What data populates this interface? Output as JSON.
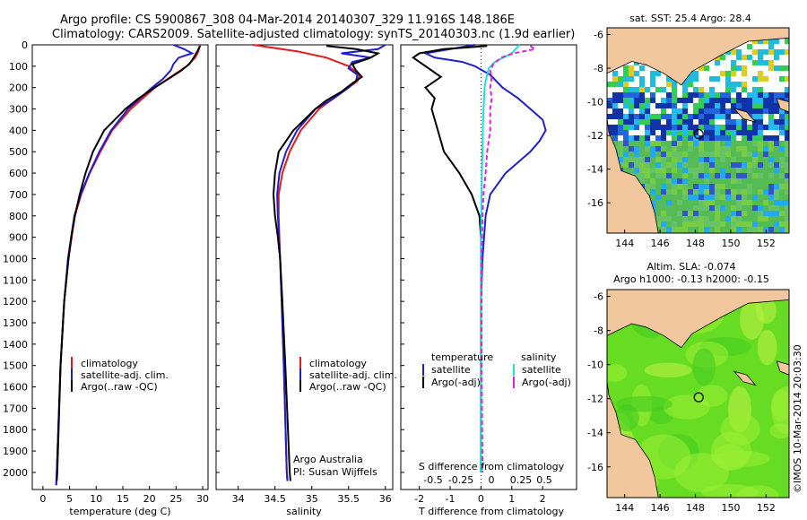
{
  "header": {
    "line1": "Argo profile: CS 5900867_308 04-Mar-2014 20140307_329 11.916S 148.186E",
    "line2": "Climatology: CARS2009. Satellite-adjusted climatology: synTS_20140303.nc (1.9d earlier)"
  },
  "colors": {
    "clim": "#e41a1c",
    "sat": "#1f1fcc",
    "argo": "#000000",
    "sal_sat": "#22dddd",
    "sal_argo": "#dd22dd",
    "land": "#f2c79e"
  },
  "chart_data": [
    {
      "type": "line",
      "id": "temperature",
      "xlabel": "temperature (deg C)",
      "xlim": [
        -2,
        31
      ],
      "xticks": [
        0,
        5,
        10,
        15,
        20,
        25,
        30
      ],
      "xtick_labels": [
        "0",
        "5",
        "10",
        "15",
        "20",
        "25",
        "30"
      ],
      "ylim": [
        2080,
        0
      ],
      "yticks": [
        0,
        100,
        200,
        300,
        400,
        500,
        600,
        700,
        800,
        900,
        1000,
        1100,
        1200,
        1300,
        1400,
        1500,
        1600,
        1700,
        1800,
        1900,
        2000
      ],
      "ytick_labels": [
        "0",
        "100",
        "200",
        "300",
        "400",
        "500",
        "600",
        "700",
        "800",
        "900",
        "1000",
        "1100",
        "1200",
        "1300",
        "1400",
        "1500",
        "1600",
        "1700",
        "1800",
        "1900",
        "2000"
      ],
      "legend": [
        "climatology",
        "satellite-adj. clim.",
        "Argo(..raw -QC)"
      ],
      "series": [
        {
          "name": "climatology",
          "color": "#e41a1c",
          "depth": [
            0,
            30,
            60,
            100,
            150,
            200,
            300,
            400,
            500,
            600,
            700,
            800,
            1000,
            1200,
            1500,
            2000,
            2060
          ],
          "values": [
            29.5,
            29.2,
            28.6,
            27.0,
            24.0,
            21.0,
            16.5,
            13.0,
            10.8,
            8.8,
            7.2,
            6.0,
            4.8,
            4.0,
            3.3,
            2.6,
            2.5
          ]
        },
        {
          "name": "satellite-adj. clim.",
          "color": "#1f1fcc",
          "depth": [
            0,
            20,
            40,
            60,
            90,
            120,
            160,
            200,
            300,
            400,
            500,
            600,
            700,
            800,
            1000,
            1200,
            1500,
            2000,
            2060
          ],
          "values": [
            24.5,
            26.5,
            28.0,
            25.5,
            24.5,
            24.0,
            22.5,
            20.5,
            16.0,
            12.8,
            10.6,
            8.7,
            7.1,
            5.9,
            4.7,
            4.0,
            3.3,
            2.6,
            2.5
          ]
        },
        {
          "name": "Argo(..raw -QC)",
          "color": "#000000",
          "depth": [
            5,
            30,
            60,
            90,
            120,
            160,
            200,
            250,
            300,
            400,
            500,
            600,
            700,
            800,
            900,
            1000,
            1200,
            1500,
            2000,
            2040
          ],
          "values": [
            29.5,
            29.0,
            28.3,
            27.5,
            26.0,
            23.5,
            21.0,
            18.0,
            15.5,
            11.5,
            9.4,
            8.0,
            6.9,
            6.0,
            5.3,
            4.8,
            4.0,
            3.3,
            2.7,
            2.6
          ]
        }
      ]
    },
    {
      "type": "line",
      "id": "salinity",
      "xlabel": "salinity",
      "xlim": [
        33.7,
        36.1
      ],
      "xticks": [
        34,
        34.5,
        35,
        35.5,
        36
      ],
      "xtick_labels": [
        "34",
        "34.5",
        "35",
        "35.5",
        "36"
      ],
      "ylim": [
        2080,
        0
      ],
      "legend": [
        "climatology",
        "satellite-adj. clim.",
        "Argo(..raw -QC)"
      ],
      "annotations": [
        "Argo Australia",
        "PI: Susan Wijffels"
      ],
      "series": [
        {
          "name": "climatology",
          "color": "#e41a1c",
          "depth": [
            0,
            30,
            60,
            100,
            140,
            170,
            200,
            250,
            300,
            400,
            500,
            600,
            700,
            800,
            1000,
            1200,
            1500,
            2000,
            2040
          ],
          "values": [
            34.2,
            34.8,
            35.2,
            35.5,
            35.65,
            35.62,
            35.5,
            35.3,
            35.1,
            34.85,
            34.7,
            34.6,
            34.55,
            34.55,
            34.57,
            34.59,
            34.62,
            34.66,
            34.67
          ]
        },
        {
          "name": "satellite-adj. clim.",
          "color": "#1f1fcc",
          "depth": [
            0,
            20,
            40,
            60,
            80,
            110,
            140,
            170,
            200,
            250,
            300,
            400,
            500,
            600,
            700,
            800,
            1000,
            1200,
            1500,
            2000,
            2040
          ],
          "values": [
            36.0,
            35.9,
            35.4,
            35.8,
            35.55,
            35.5,
            35.62,
            35.6,
            35.5,
            35.3,
            35.05,
            34.8,
            34.65,
            34.56,
            34.53,
            34.54,
            34.57,
            34.59,
            34.62,
            34.66,
            34.67
          ]
        },
        {
          "name": "Argo(..raw -QC)",
          "color": "#000000",
          "depth": [
            5,
            20,
            40,
            60,
            90,
            120,
            150,
            180,
            220,
            260,
            300,
            400,
            500,
            600,
            700,
            800,
            900,
            1000,
            1200,
            1500,
            2000,
            2040
          ],
          "values": [
            35.2,
            35.6,
            35.9,
            35.8,
            35.55,
            35.6,
            35.68,
            35.55,
            35.4,
            35.2,
            35.05,
            34.75,
            34.55,
            34.5,
            34.48,
            34.5,
            34.54,
            34.57,
            34.6,
            34.64,
            34.7,
            34.71
          ]
        }
      ]
    },
    {
      "type": "line",
      "id": "differences",
      "xlabel": "T difference from climatology",
      "xlabel_top": "S difference from climatology",
      "xlim": [
        -2.6,
        3.1
      ],
      "xticks": [
        -2,
        -1,
        0,
        1,
        2
      ],
      "xtick_labels": [
        "-2",
        "-1",
        "0",
        "1",
        "2"
      ],
      "sticks": [
        "-0.5",
        "-0.25",
        "0",
        "0.25",
        "0.5"
      ],
      "ylim": [
        2080,
        0
      ],
      "legend_headers": [
        "temperature",
        "salinity"
      ],
      "legend": [
        "satellite",
        "Argo(-adj)",
        "satellite",
        "Argo(-adj)"
      ],
      "series": [
        {
          "name": "T satellite",
          "color": "#1f1fcc",
          "depth": [
            0,
            20,
            40,
            60,
            80,
            100,
            140,
            200,
            250,
            300,
            350,
            400,
            450,
            500,
            600,
            700,
            800,
            1000,
            1200,
            1500,
            2000
          ],
          "values": [
            -0.2,
            -1.0,
            -1.8,
            -1.5,
            -0.6,
            -0.2,
            0.3,
            0.7,
            1.2,
            1.6,
            2.0,
            2.1,
            1.9,
            1.6,
            0.8,
            0.3,
            0.15,
            0.05,
            0.0,
            0.0,
            0.0
          ]
        },
        {
          "name": "T Argo(-adj)",
          "color": "#000000",
          "depth": [
            5,
            20,
            40,
            60,
            100,
            150,
            200,
            250,
            300,
            400,
            500,
            600,
            700,
            800,
            900,
            1000,
            1200,
            1500,
            2000
          ],
          "values": [
            0.2,
            -1.2,
            -2.0,
            -2.2,
            -1.8,
            -1.3,
            -1.8,
            -1.5,
            -1.6,
            -1.4,
            -1.2,
            -0.7,
            -0.3,
            -0.05,
            0.0,
            0.0,
            0.0,
            0.0,
            0.0
          ]
        },
        {
          "name": "S satellite",
          "color": "#22dddd",
          "depth": [
            0,
            40,
            80,
            110,
            140,
            170,
            200,
            250,
            300,
            400,
            500,
            600,
            700,
            800,
            1000,
            1500,
            2000
          ],
          "values": [
            1.25,
            1.0,
            0.45,
            0.25,
            0.2,
            0.15,
            0.12,
            0.1,
            0.08,
            0.06,
            0.05,
            0.03,
            0.02,
            0.01,
            0.0,
            0.0,
            0.0
          ]
        },
        {
          "name": "S Argo(-adj)",
          "color": "#dd22dd",
          "depth": [
            5,
            20,
            40,
            60,
            90,
            120,
            150,
            200,
            250,
            300,
            400,
            500,
            600,
            700,
            800,
            1000,
            1500,
            2000
          ],
          "values": [
            1.6,
            1.75,
            1.05,
            0.65,
            0.4,
            0.3,
            0.35,
            0.3,
            0.35,
            0.3,
            0.3,
            0.2,
            0.15,
            0.08,
            0.05,
            0.02,
            0.02,
            0.05
          ]
        }
      ]
    },
    {
      "type": "heatmap",
      "id": "sst-map",
      "title": "sat. SST: 25.4 Argo: 28.4",
      "xticks": [
        144,
        146,
        148,
        150,
        152
      ],
      "xtick_labels": [
        "144",
        "146",
        "148",
        "150",
        "152"
      ],
      "yticks": [
        -6,
        -8,
        -10,
        -12,
        -14,
        -16
      ],
      "ytick_labels": [
        "-6",
        "-8",
        "-10",
        "-12",
        "-14",
        "-16"
      ],
      "xlim": [
        143,
        153.3
      ],
      "ylim": [
        -17.8,
        -5.6
      ],
      "marker": {
        "lon": 148.186,
        "lat": -11.916
      }
    },
    {
      "type": "heatmap",
      "id": "sla-map",
      "title": "Altim. SLA: -0.074",
      "subtitle": "Argo h1000: -0.13 h2000: -0.15",
      "xticks": [
        144,
        146,
        148,
        150,
        152
      ],
      "xtick_labels": [
        "144",
        "146",
        "148",
        "150",
        "152"
      ],
      "yticks": [
        -6,
        -8,
        -10,
        -12,
        -14,
        -16
      ],
      "ytick_labels": [
        "-6",
        "-8",
        "-10",
        "-12",
        "-14",
        "-16"
      ],
      "xlim": [
        143,
        153.3
      ],
      "ylim": [
        -17.8,
        -5.6
      ],
      "marker": {
        "lon": 148.186,
        "lat": -11.916
      }
    }
  ],
  "footer": {
    "stamp": "©IMOS 10-Mar-2014 20:03:30"
  }
}
